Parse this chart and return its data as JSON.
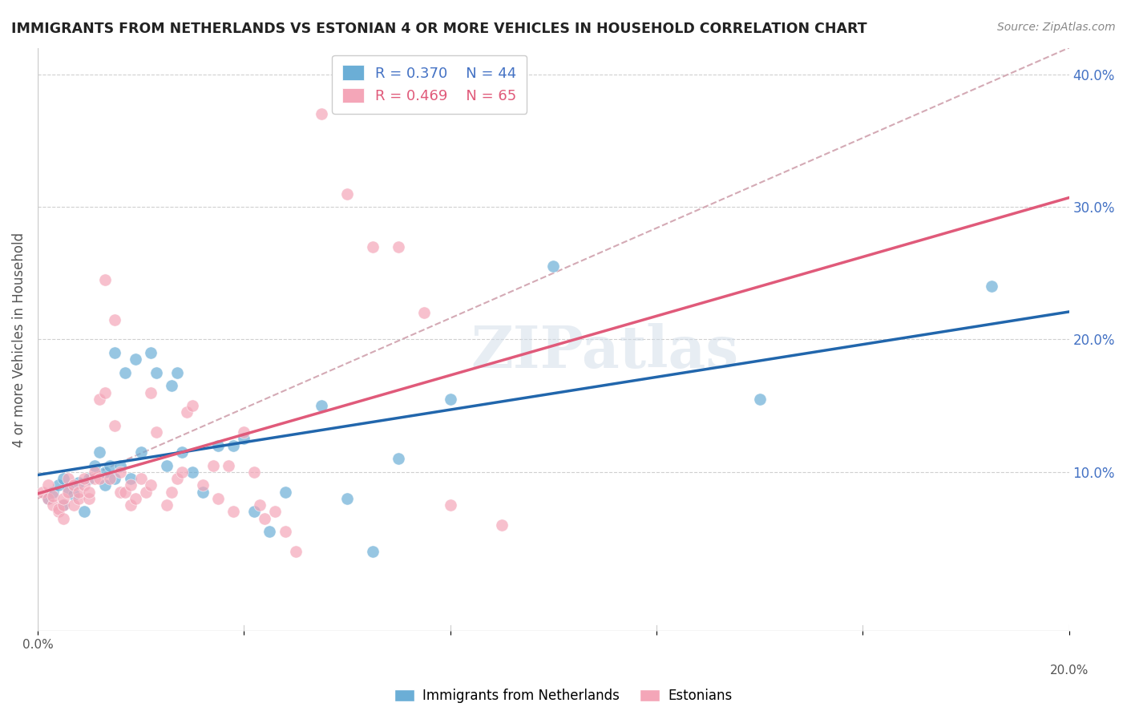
{
  "title": "IMMIGRANTS FROM NETHERLANDS VS ESTONIAN 4 OR MORE VEHICLES IN HOUSEHOLD CORRELATION CHART",
  "source": "Source: ZipAtlas.com",
  "xlabel": "",
  "ylabel": "4 or more Vehicles in Household",
  "xlim": [
    0.0,
    0.2
  ],
  "ylim": [
    -0.02,
    0.42
  ],
  "xticks": [
    0.0,
    0.04,
    0.08,
    0.12,
    0.16,
    0.2
  ],
  "xticklabels": [
    "0.0%",
    "",
    "",
    "",
    "",
    "20.0%"
  ],
  "yticks_left": [],
  "yticks_right": [
    0.1,
    0.2,
    0.3,
    0.4
  ],
  "yticklabels_right": [
    "10.0%",
    "20.0%",
    "30.0%",
    "40.0%"
  ],
  "legend_labels": [
    "Immigrants from Netherlands",
    "Estonians"
  ],
  "legend_R": [
    "0.370",
    "0.469"
  ],
  "legend_N": [
    "44",
    "65"
  ],
  "blue_color": "#6baed6",
  "pink_color": "#f4a6b8",
  "blue_line_color": "#2166ac",
  "pink_line_color": "#e05a7a",
  "dashed_line_color": "#d4aab5",
  "watermark": "ZIPatlas",
  "blue_scatter_x": [
    0.002,
    0.003,
    0.004,
    0.005,
    0.005,
    0.006,
    0.007,
    0.008,
    0.009,
    0.01,
    0.011,
    0.012,
    0.013,
    0.013,
    0.014,
    0.015,
    0.015,
    0.016,
    0.017,
    0.018,
    0.019,
    0.02,
    0.022,
    0.023,
    0.025,
    0.026,
    0.027,
    0.028,
    0.03,
    0.032,
    0.035,
    0.038,
    0.04,
    0.042,
    0.045,
    0.048,
    0.055,
    0.06,
    0.065,
    0.07,
    0.08,
    0.1,
    0.14,
    0.185
  ],
  "blue_scatter_y": [
    0.08,
    0.085,
    0.09,
    0.095,
    0.075,
    0.088,
    0.083,
    0.092,
    0.07,
    0.095,
    0.105,
    0.115,
    0.09,
    0.1,
    0.105,
    0.095,
    0.19,
    0.105,
    0.175,
    0.095,
    0.185,
    0.115,
    0.19,
    0.175,
    0.105,
    0.165,
    0.175,
    0.115,
    0.1,
    0.085,
    0.12,
    0.12,
    0.125,
    0.07,
    0.055,
    0.085,
    0.15,
    0.08,
    0.04,
    0.11,
    0.155,
    0.255,
    0.155,
    0.24
  ],
  "pink_scatter_x": [
    0.001,
    0.002,
    0.002,
    0.003,
    0.003,
    0.004,
    0.004,
    0.005,
    0.005,
    0.005,
    0.006,
    0.006,
    0.007,
    0.007,
    0.008,
    0.008,
    0.009,
    0.009,
    0.01,
    0.01,
    0.011,
    0.011,
    0.012,
    0.012,
    0.013,
    0.013,
    0.014,
    0.015,
    0.015,
    0.016,
    0.016,
    0.017,
    0.018,
    0.018,
    0.019,
    0.02,
    0.021,
    0.022,
    0.022,
    0.023,
    0.025,
    0.026,
    0.027,
    0.028,
    0.029,
    0.03,
    0.032,
    0.034,
    0.035,
    0.037,
    0.038,
    0.04,
    0.042,
    0.043,
    0.044,
    0.046,
    0.048,
    0.05,
    0.055,
    0.06,
    0.065,
    0.07,
    0.075,
    0.08,
    0.09
  ],
  "pink_scatter_y": [
    0.085,
    0.08,
    0.09,
    0.075,
    0.082,
    0.07,
    0.072,
    0.065,
    0.075,
    0.08,
    0.085,
    0.095,
    0.075,
    0.09,
    0.08,
    0.085,
    0.09,
    0.095,
    0.08,
    0.085,
    0.095,
    0.1,
    0.155,
    0.095,
    0.16,
    0.245,
    0.095,
    0.215,
    0.135,
    0.085,
    0.1,
    0.085,
    0.075,
    0.09,
    0.08,
    0.095,
    0.085,
    0.16,
    0.09,
    0.13,
    0.075,
    0.085,
    0.095,
    0.1,
    0.145,
    0.15,
    0.09,
    0.105,
    0.08,
    0.105,
    0.07,
    0.13,
    0.1,
    0.075,
    0.065,
    0.07,
    0.055,
    0.04,
    0.37,
    0.31,
    0.27,
    0.27,
    0.22,
    0.075,
    0.06
  ]
}
